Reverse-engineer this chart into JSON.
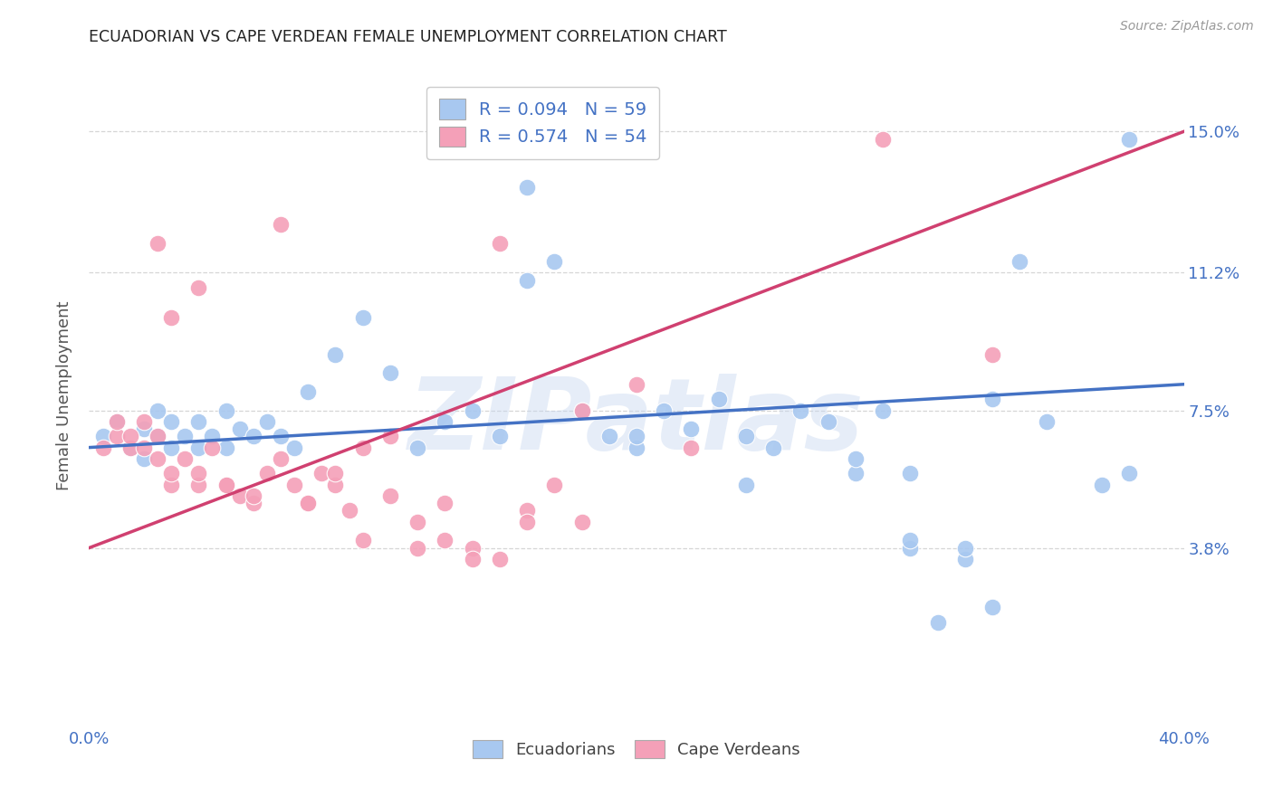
{
  "title": "ECUADORIAN VS CAPE VERDEAN FEMALE UNEMPLOYMENT CORRELATION CHART",
  "source": "Source: ZipAtlas.com",
  "ylabel": "Female Unemployment",
  "xlim": [
    0.0,
    0.4
  ],
  "ylim": [
    -0.01,
    0.168
  ],
  "xtick_positions": [
    0.0,
    0.08,
    0.16,
    0.24,
    0.32,
    0.4
  ],
  "xtick_labels": [
    "0.0%",
    "",
    "",
    "",
    "",
    "40.0%"
  ],
  "ytick_labels": [
    "3.8%",
    "7.5%",
    "11.2%",
    "15.0%"
  ],
  "ytick_values": [
    0.038,
    0.075,
    0.112,
    0.15
  ],
  "blue_color": "#A8C8F0",
  "pink_color": "#F4A0B8",
  "line_blue": "#4472C4",
  "line_pink": "#D04070",
  "R_blue": 0.094,
  "N_blue": 59,
  "R_pink": 0.574,
  "N_pink": 54,
  "legend_label_blue": "Ecuadorians",
  "legend_label_pink": "Cape Verdeans",
  "ecuadorian_x": [
    0.005,
    0.01,
    0.015,
    0.02,
    0.02,
    0.025,
    0.025,
    0.03,
    0.03,
    0.035,
    0.04,
    0.04,
    0.045,
    0.05,
    0.05,
    0.055,
    0.06,
    0.065,
    0.07,
    0.075,
    0.08,
    0.09,
    0.1,
    0.11,
    0.12,
    0.13,
    0.14,
    0.15,
    0.16,
    0.17,
    0.18,
    0.19,
    0.2,
    0.21,
    0.22,
    0.23,
    0.24,
    0.25,
    0.26,
    0.27,
    0.28,
    0.3,
    0.32,
    0.33,
    0.35,
    0.37,
    0.38,
    0.16,
    0.2,
    0.24,
    0.28,
    0.3,
    0.32,
    0.29,
    0.31,
    0.33,
    0.38,
    0.3,
    0.34
  ],
  "ecuadorian_y": [
    0.068,
    0.072,
    0.065,
    0.07,
    0.062,
    0.068,
    0.075,
    0.065,
    0.072,
    0.068,
    0.065,
    0.072,
    0.068,
    0.075,
    0.065,
    0.07,
    0.068,
    0.072,
    0.068,
    0.065,
    0.08,
    0.09,
    0.1,
    0.085,
    0.065,
    0.072,
    0.075,
    0.068,
    0.135,
    0.115,
    0.075,
    0.068,
    0.065,
    0.075,
    0.07,
    0.078,
    0.068,
    0.065,
    0.075,
    0.072,
    0.058,
    0.038,
    0.035,
    0.078,
    0.072,
    0.055,
    0.058,
    0.11,
    0.068,
    0.055,
    0.062,
    0.058,
    0.038,
    0.075,
    0.018,
    0.022,
    0.148,
    0.04,
    0.115
  ],
  "capeverdean_x": [
    0.005,
    0.01,
    0.01,
    0.015,
    0.015,
    0.02,
    0.02,
    0.025,
    0.025,
    0.03,
    0.03,
    0.035,
    0.04,
    0.04,
    0.045,
    0.05,
    0.055,
    0.06,
    0.065,
    0.07,
    0.075,
    0.08,
    0.085,
    0.09,
    0.095,
    0.1,
    0.11,
    0.12,
    0.13,
    0.14,
    0.15,
    0.16,
    0.17,
    0.18,
    0.03,
    0.04,
    0.05,
    0.06,
    0.08,
    0.1,
    0.12,
    0.14,
    0.16,
    0.18,
    0.2,
    0.22,
    0.025,
    0.07,
    0.09,
    0.11,
    0.13,
    0.15,
    0.29,
    0.33
  ],
  "capeverdean_y": [
    0.065,
    0.068,
    0.072,
    0.065,
    0.068,
    0.065,
    0.072,
    0.068,
    0.062,
    0.055,
    0.058,
    0.062,
    0.055,
    0.058,
    0.065,
    0.055,
    0.052,
    0.05,
    0.058,
    0.062,
    0.055,
    0.05,
    0.058,
    0.055,
    0.048,
    0.065,
    0.068,
    0.045,
    0.04,
    0.038,
    0.035,
    0.048,
    0.055,
    0.045,
    0.1,
    0.108,
    0.055,
    0.052,
    0.05,
    0.04,
    0.038,
    0.035,
    0.045,
    0.075,
    0.082,
    0.065,
    0.12,
    0.125,
    0.058,
    0.052,
    0.05,
    0.12,
    0.148,
    0.09
  ],
  "background_color": "#FFFFFF",
  "grid_color": "#CCCCCC",
  "title_color": "#222222",
  "axis_label_color": "#555555",
  "tick_color_blue": "#4472C4",
  "watermark_text": "ZIPatlas",
  "watermark_color": "#C8D8F0",
  "watermark_alpha": 0.45
}
